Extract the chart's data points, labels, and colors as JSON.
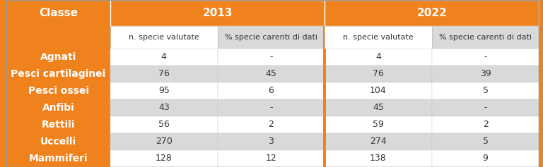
{
  "title_col": "Classe",
  "year_headers": [
    "2013",
    "2022"
  ],
  "sub_headers": [
    "n. specie valutate",
    "% specie carenti di dati",
    "n. specie valutate",
    "% specie carenti di dati"
  ],
  "rows": [
    [
      "Agnati",
      "4",
      "-",
      "4",
      "-"
    ],
    [
      "Pesci cartilaginei",
      "76",
      "45",
      "76",
      "39"
    ],
    [
      "Pesci ossei",
      "95",
      "6",
      "104",
      "5"
    ],
    [
      "Anfibi",
      "43",
      "-",
      "45",
      "-"
    ],
    [
      "Rettili",
      "56",
      "2",
      "59",
      "2"
    ],
    [
      "Uccelli",
      "270",
      "3",
      "274",
      "5"
    ],
    [
      "Mammiferi",
      "128",
      "12",
      "138",
      "9"
    ]
  ],
  "orange_color": "#F0821E",
  "header_text_color": "#FFFFFF",
  "row_label_text_color": "#FFFFFF",
  "data_text_color": "#333333",
  "alt_row_color": "#D9D9D9",
  "white_row_color": "#FFFFFF",
  "border_color": "#AAAAAA",
  "header_fontsize": 11,
  "subheader_fontsize": 8,
  "cell_fontsize": 9,
  "label_fontsize": 10
}
